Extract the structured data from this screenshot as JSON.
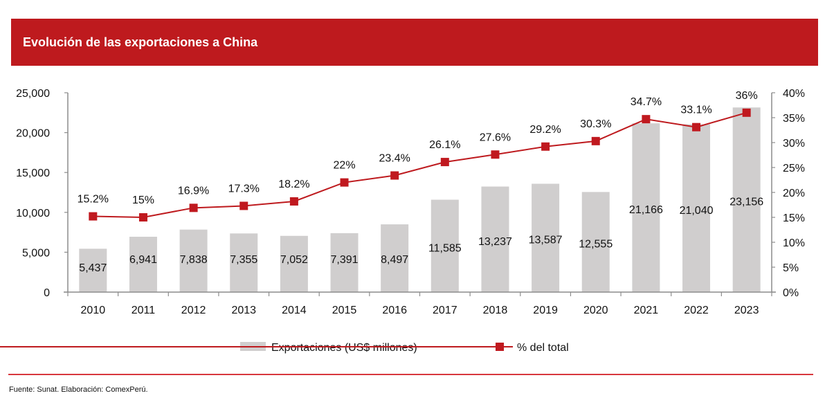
{
  "header": {
    "title": "Evolución de las exportaciones a China"
  },
  "footer": {
    "source": "Fuente: Sunat. Elaboración: ComexPerú."
  },
  "colors": {
    "bar": "#d0cece",
    "line": "#be1a1e",
    "marker": "#c0191f",
    "axis": "#8c8c8c",
    "title_bg": "#be1a1e"
  },
  "chart_data": {
    "type": "bar+line",
    "title": "Evolución de las exportaciones a China",
    "categories": [
      "2010",
      "2011",
      "2012",
      "2013",
      "2014",
      "2015",
      "2016",
      "2017",
      "2018",
      "2019",
      "2020",
      "2021",
      "2022",
      "2023"
    ],
    "series": [
      {
        "name": "Exportaciones (US$ millones)",
        "type": "bar",
        "axis": "left",
        "values": [
          5437,
          6941,
          7838,
          7355,
          7052,
          7391,
          8497,
          11585,
          13237,
          13587,
          12555,
          21166,
          21040,
          23156
        ],
        "labels": [
          "5,437",
          "6,941",
          "7,838",
          "7,355",
          "7,052",
          "7,391",
          "8,497",
          "11,585",
          "13,237",
          "13,587",
          "12,555",
          "21,166",
          "21,040",
          "23,156"
        ]
      },
      {
        "name": "% del total",
        "type": "line",
        "axis": "right",
        "values": [
          15.2,
          15,
          16.9,
          17.3,
          18.2,
          22,
          23.4,
          26.1,
          27.6,
          29.2,
          30.3,
          34.7,
          33.1,
          36
        ],
        "labels": [
          "15.2%",
          "15%",
          "16.9%",
          "17.3%",
          "18.2%",
          "22%",
          "23.4%",
          "26.1%",
          "27.6%",
          "29.2%",
          "30.3%",
          "34.7%",
          "33.1%",
          "36%"
        ]
      }
    ],
    "y_left": {
      "min": 0,
      "max": 25000,
      "ticks": [
        0,
        5000,
        10000,
        15000,
        20000,
        25000
      ],
      "tick_labels": [
        "0",
        "5,000",
        "10,000",
        "15,000",
        "20,000",
        "25,000"
      ]
    },
    "y_right": {
      "min": 0,
      "max": 40,
      "ticks": [
        0,
        5,
        10,
        15,
        20,
        25,
        30,
        35,
        40
      ],
      "tick_labels": [
        "0%",
        "5%",
        "10%",
        "15%",
        "20%",
        "25%",
        "30%",
        "35%",
        "40%"
      ]
    },
    "xlabel": "",
    "ylabel": "",
    "grid": false,
    "legend": {
      "position": "bottom",
      "entries": [
        "Exportaciones (US$ millones)",
        "% del total"
      ]
    }
  }
}
